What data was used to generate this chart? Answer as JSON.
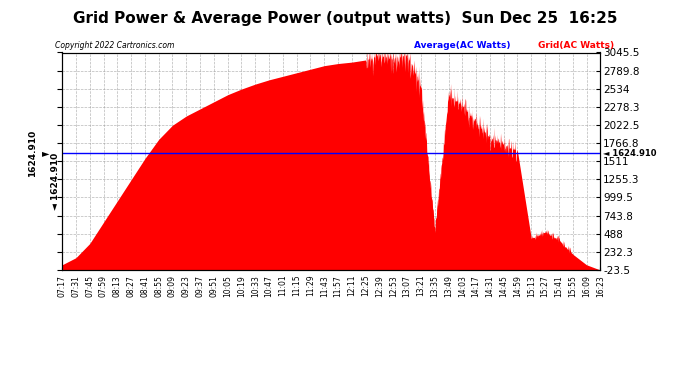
{
  "title": "Grid Power & Average Power (output watts)  Sun Dec 25  16:25",
  "copyright": "Copyright 2022 Cartronics.com",
  "legend_avg": "Average(AC Watts)",
  "legend_grid": "Grid(AC Watts)",
  "average_value": 1624.91,
  "ymin": -23.5,
  "ymax": 3045.5,
  "yticks": [
    3045.5,
    2789.8,
    2534.0,
    2278.3,
    2022.5,
    1766.8,
    1511.0,
    1255.3,
    999.5,
    743.8,
    488.0,
    232.3,
    -23.5
  ],
  "background_color": "#ffffff",
  "fill_color": "#ff0000",
  "line_color": "#0000ff",
  "grid_color": "#999999",
  "title_fontsize": 11,
  "tick_fontsize": 7.5,
  "xtick_labels": [
    "07:17",
    "07:31",
    "07:45",
    "07:59",
    "08:13",
    "08:27",
    "08:41",
    "08:55",
    "09:09",
    "09:23",
    "09:37",
    "09:51",
    "10:05",
    "10:19",
    "10:33",
    "10:47",
    "11:01",
    "11:15",
    "11:29",
    "11:43",
    "11:57",
    "12:11",
    "12:25",
    "12:39",
    "12:53",
    "13:07",
    "13:21",
    "13:35",
    "13:49",
    "14:03",
    "14:17",
    "14:31",
    "14:45",
    "14:59",
    "15:13",
    "15:27",
    "15:41",
    "15:55",
    "16:09",
    "16:23"
  ]
}
